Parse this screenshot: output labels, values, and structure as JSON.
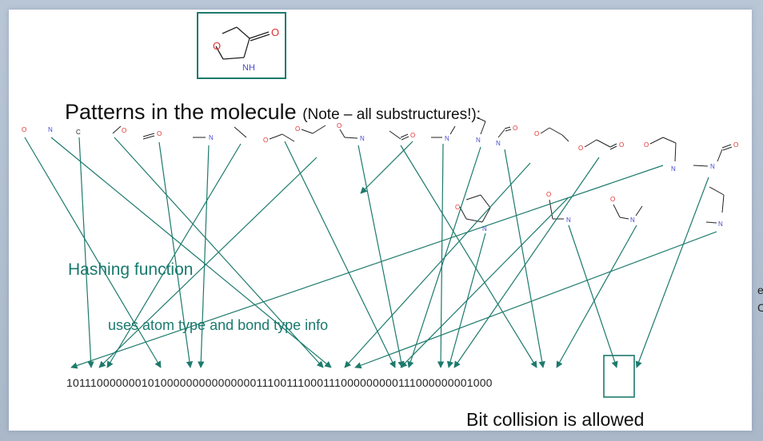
{
  "title": "Patterns in the molecule",
  "title_note": "(Note – all substructures!):",
  "hashing_label": "Hashing function",
  "hashing_sub": "uses atom type and bond type info",
  "bitstring": "10111000000010100000000000000011100111000111000000000111000000001000",
  "collision_label": "Bit collision is allowed",
  "cut_text": [
    "e",
    "C"
  ],
  "atoms": {
    "O": "O",
    "N": "N",
    "C": "C",
    "NH": "NH"
  },
  "colors": {
    "arrow": "#1d7a6c",
    "oxygen": "#e03030",
    "nitrogen": "#4a4ad0",
    "bond": "#222222"
  }
}
